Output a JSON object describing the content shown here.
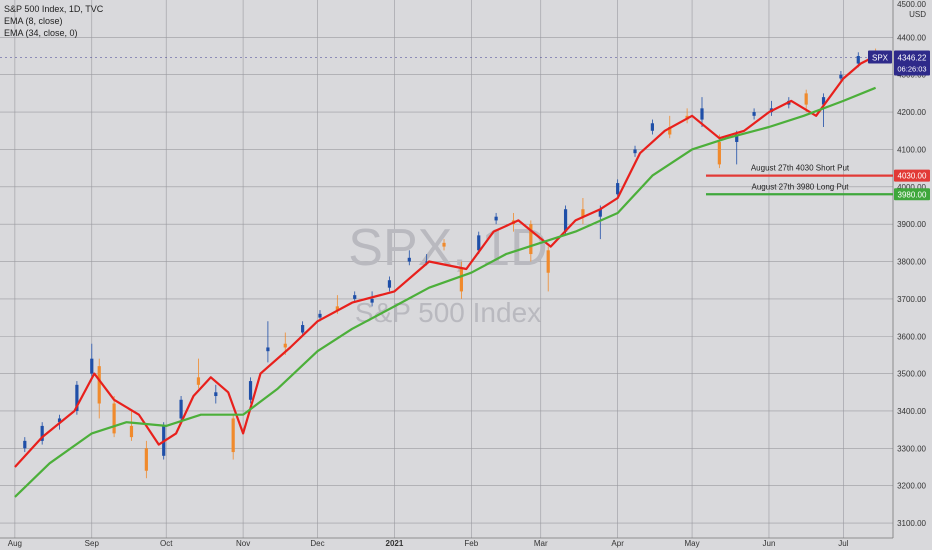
{
  "header": {
    "symbol_line": "S&P 500 Index, 1D, TVC",
    "ema_fast_label": "EMA (8, close)",
    "ema_slow_label": "EMA (34, close, 0)",
    "currency": "USD",
    "top_tick_partial": "4500.00"
  },
  "watermark": {
    "symbol": "SPX, 1D",
    "name": "S&P 500 Index"
  },
  "price_tag": {
    "symbol": "SPX",
    "price": "4346.22",
    "countdown": "06:26:03"
  },
  "annotations": [
    {
      "text": "August 27th 4030 Short Put",
      "level": 4030,
      "level_label": "4030.00",
      "color": "#e23a36"
    },
    {
      "text": "August 27th 3980 Long Put",
      "level": 3980,
      "level_label": "3980.00",
      "color": "#3fa73c"
    }
  ],
  "colors": {
    "background": "#d9d9dc",
    "grid": "#9a9aa0",
    "ema_fast": "#e8201c",
    "ema_slow": "#4caf3a",
    "candle_up": "#1f4fa8",
    "candle_down": "#f08a2c",
    "price_tag": "#2e2a8a"
  },
  "chart_data": {
    "type": "line",
    "title": "S&P 500 Index, 1D, TVC",
    "xlabel": "",
    "ylabel": "USD",
    "x_ticks": [
      "Aug",
      "Sep",
      "Oct",
      "Nov",
      "Dec",
      "2021",
      "Feb",
      "Mar",
      "Apr",
      "May",
      "Jun",
      "Jul"
    ],
    "x_tick_dates": [
      "2020-08-01",
      "2020-09-01",
      "2020-10-01",
      "2020-11-01",
      "2020-12-01",
      "2021-01-01",
      "2021-02-01",
      "2021-03-01",
      "2021-04-01",
      "2021-05-01",
      "2021-06-01",
      "2021-07-01"
    ],
    "y_ticks": [
      "3100.00",
      "3200.00",
      "3300.00",
      "3400.00",
      "3500.00",
      "3600.00",
      "3700.00",
      "3800.00",
      "3900.00",
      "4000.00",
      "4100.00",
      "4200.00",
      "4300.00",
      "4400.00"
    ],
    "ylim": [
      3060,
      4500
    ],
    "grid": true,
    "series": [
      {
        "name": "EMA (8, close)",
        "points": [
          [
            "2020-08-01",
            3250
          ],
          [
            "2020-08-12",
            3330
          ],
          [
            "2020-08-25",
            3400
          ],
          [
            "2020-09-02",
            3500
          ],
          [
            "2020-09-10",
            3430
          ],
          [
            "2020-09-20",
            3390
          ],
          [
            "2020-09-28",
            3310
          ],
          [
            "2020-10-05",
            3340
          ],
          [
            "2020-10-12",
            3440
          ],
          [
            "2020-10-19",
            3490
          ],
          [
            "2020-10-26",
            3450
          ],
          [
            "2020-11-01",
            3340
          ],
          [
            "2020-11-08",
            3500
          ],
          [
            "2020-11-20",
            3570
          ],
          [
            "2020-12-01",
            3640
          ],
          [
            "2020-12-15",
            3690
          ],
          [
            "2021-01-01",
            3720
          ],
          [
            "2021-01-15",
            3800
          ],
          [
            "2021-01-30",
            3780
          ],
          [
            "2021-02-10",
            3880
          ],
          [
            "2021-02-20",
            3910
          ],
          [
            "2021-03-05",
            3840
          ],
          [
            "2021-03-15",
            3910
          ],
          [
            "2021-03-25",
            3940
          ],
          [
            "2021-04-01",
            3970
          ],
          [
            "2021-04-10",
            4090
          ],
          [
            "2021-04-20",
            4150
          ],
          [
            "2021-05-01",
            4190
          ],
          [
            "2021-05-12",
            4130
          ],
          [
            "2021-05-22",
            4150
          ],
          [
            "2021-06-01",
            4200
          ],
          [
            "2021-06-10",
            4230
          ],
          [
            "2021-06-20",
            4190
          ],
          [
            "2021-07-01",
            4290
          ],
          [
            "2021-07-08",
            4330
          ],
          [
            "2021-07-14",
            4350
          ]
        ]
      },
      {
        "name": "EMA (34, close, 0)",
        "points": [
          [
            "2020-08-01",
            3170
          ],
          [
            "2020-08-15",
            3260
          ],
          [
            "2020-09-01",
            3340
          ],
          [
            "2020-09-15",
            3370
          ],
          [
            "2020-10-01",
            3360
          ],
          [
            "2020-10-15",
            3390
          ],
          [
            "2020-11-01",
            3390
          ],
          [
            "2020-11-15",
            3460
          ],
          [
            "2020-12-01",
            3560
          ],
          [
            "2020-12-15",
            3620
          ],
          [
            "2021-01-01",
            3680
          ],
          [
            "2021-01-15",
            3730
          ],
          [
            "2021-02-01",
            3770
          ],
          [
            "2021-02-15",
            3820
          ],
          [
            "2021-03-01",
            3850
          ],
          [
            "2021-03-15",
            3880
          ],
          [
            "2021-04-01",
            3930
          ],
          [
            "2021-04-15",
            4030
          ],
          [
            "2021-05-01",
            4100
          ],
          [
            "2021-05-15",
            4130
          ],
          [
            "2021-06-01",
            4160
          ],
          [
            "2021-06-15",
            4190
          ],
          [
            "2021-07-01",
            4230
          ],
          [
            "2021-07-14",
            4265
          ]
        ]
      }
    ],
    "ohlc": [
      [
        "2020-08-05",
        3300,
        3330,
        3290,
        3320
      ],
      [
        "2020-08-12",
        3320,
        3370,
        3310,
        3360
      ],
      [
        "2020-08-19",
        3370,
        3390,
        3350,
        3380
      ],
      [
        "2020-08-26",
        3400,
        3480,
        3390,
        3470
      ],
      [
        "2020-09-01",
        3500,
        3580,
        3490,
        3540
      ],
      [
        "2020-09-04",
        3520,
        3540,
        3380,
        3420
      ],
      [
        "2020-09-10",
        3420,
        3440,
        3330,
        3340
      ],
      [
        "2020-09-17",
        3360,
        3400,
        3320,
        3330
      ],
      [
        "2020-09-23",
        3300,
        3320,
        3220,
        3240
      ],
      [
        "2020-09-30",
        3280,
        3370,
        3270,
        3360
      ],
      [
        "2020-10-07",
        3380,
        3440,
        3370,
        3430
      ],
      [
        "2020-10-14",
        3490,
        3540,
        3460,
        3470
      ],
      [
        "2020-10-21",
        3440,
        3470,
        3420,
        3450
      ],
      [
        "2020-10-28",
        3380,
        3390,
        3270,
        3290
      ],
      [
        "2020-11-04",
        3430,
        3490,
        3420,
        3480
      ],
      [
        "2020-11-11",
        3560,
        3640,
        3530,
        3570
      ],
      [
        "2020-11-18",
        3580,
        3610,
        3550,
        3570
      ],
      [
        "2020-11-25",
        3610,
        3640,
        3600,
        3630
      ],
      [
        "2020-12-02",
        3650,
        3670,
        3640,
        3660
      ],
      [
        "2020-12-09",
        3680,
        3710,
        3660,
        3670
      ],
      [
        "2020-12-16",
        3700,
        3720,
        3690,
        3710
      ],
      [
        "2020-12-23",
        3690,
        3720,
        3680,
        3700
      ],
      [
        "2020-12-30",
        3730,
        3760,
        3720,
        3750
      ],
      [
        "2021-01-07",
        3800,
        3830,
        3790,
        3810
      ],
      [
        "2021-01-14",
        3800,
        3820,
        3790,
        3800
      ],
      [
        "2021-01-21",
        3850,
        3860,
        3830,
        3840
      ],
      [
        "2021-01-28",
        3780,
        3800,
        3700,
        3720
      ],
      [
        "2021-02-04",
        3830,
        3880,
        3820,
        3870
      ],
      [
        "2021-02-11",
        3910,
        3930,
        3900,
        3920
      ],
      [
        "2021-02-18",
        3910,
        3930,
        3880,
        3900
      ],
      [
        "2021-02-25",
        3900,
        3910,
        3800,
        3820
      ],
      [
        "2021-03-04",
        3830,
        3840,
        3720,
        3770
      ],
      [
        "2021-03-11",
        3880,
        3950,
        3870,
        3940
      ],
      [
        "2021-03-18",
        3940,
        3970,
        3900,
        3920
      ],
      [
        "2021-03-25",
        3920,
        3950,
        3860,
        3940
      ],
      [
        "2021-04-01",
        3980,
        4020,
        3970,
        4010
      ],
      [
        "2021-04-08",
        4090,
        4110,
        4080,
        4100
      ],
      [
        "2021-04-15",
        4150,
        4180,
        4140,
        4170
      ],
      [
        "2021-04-22",
        4160,
        4190,
        4130,
        4140
      ],
      [
        "2021-04-29",
        4190,
        4210,
        4170,
        4180
      ],
      [
        "2021-05-05",
        4180,
        4240,
        4160,
        4210
      ],
      [
        "2021-05-12",
        4120,
        4140,
        4050,
        4060
      ],
      [
        "2021-05-19",
        4120,
        4150,
        4060,
        4140
      ],
      [
        "2021-05-26",
        4190,
        4210,
        4180,
        4200
      ],
      [
        "2021-06-02",
        4200,
        4230,
        4190,
        4210
      ],
      [
        "2021-06-09",
        4220,
        4240,
        4210,
        4230
      ],
      [
        "2021-06-16",
        4250,
        4260,
        4200,
        4220
      ],
      [
        "2021-06-23",
        4220,
        4250,
        4160,
        4240
      ],
      [
        "2021-06-30",
        4290,
        4310,
        4280,
        4300
      ],
      [
        "2021-07-07",
        4330,
        4360,
        4320,
        4350
      ],
      [
        "2021-07-14",
        4350,
        4370,
        4330,
        4346
      ]
    ]
  }
}
